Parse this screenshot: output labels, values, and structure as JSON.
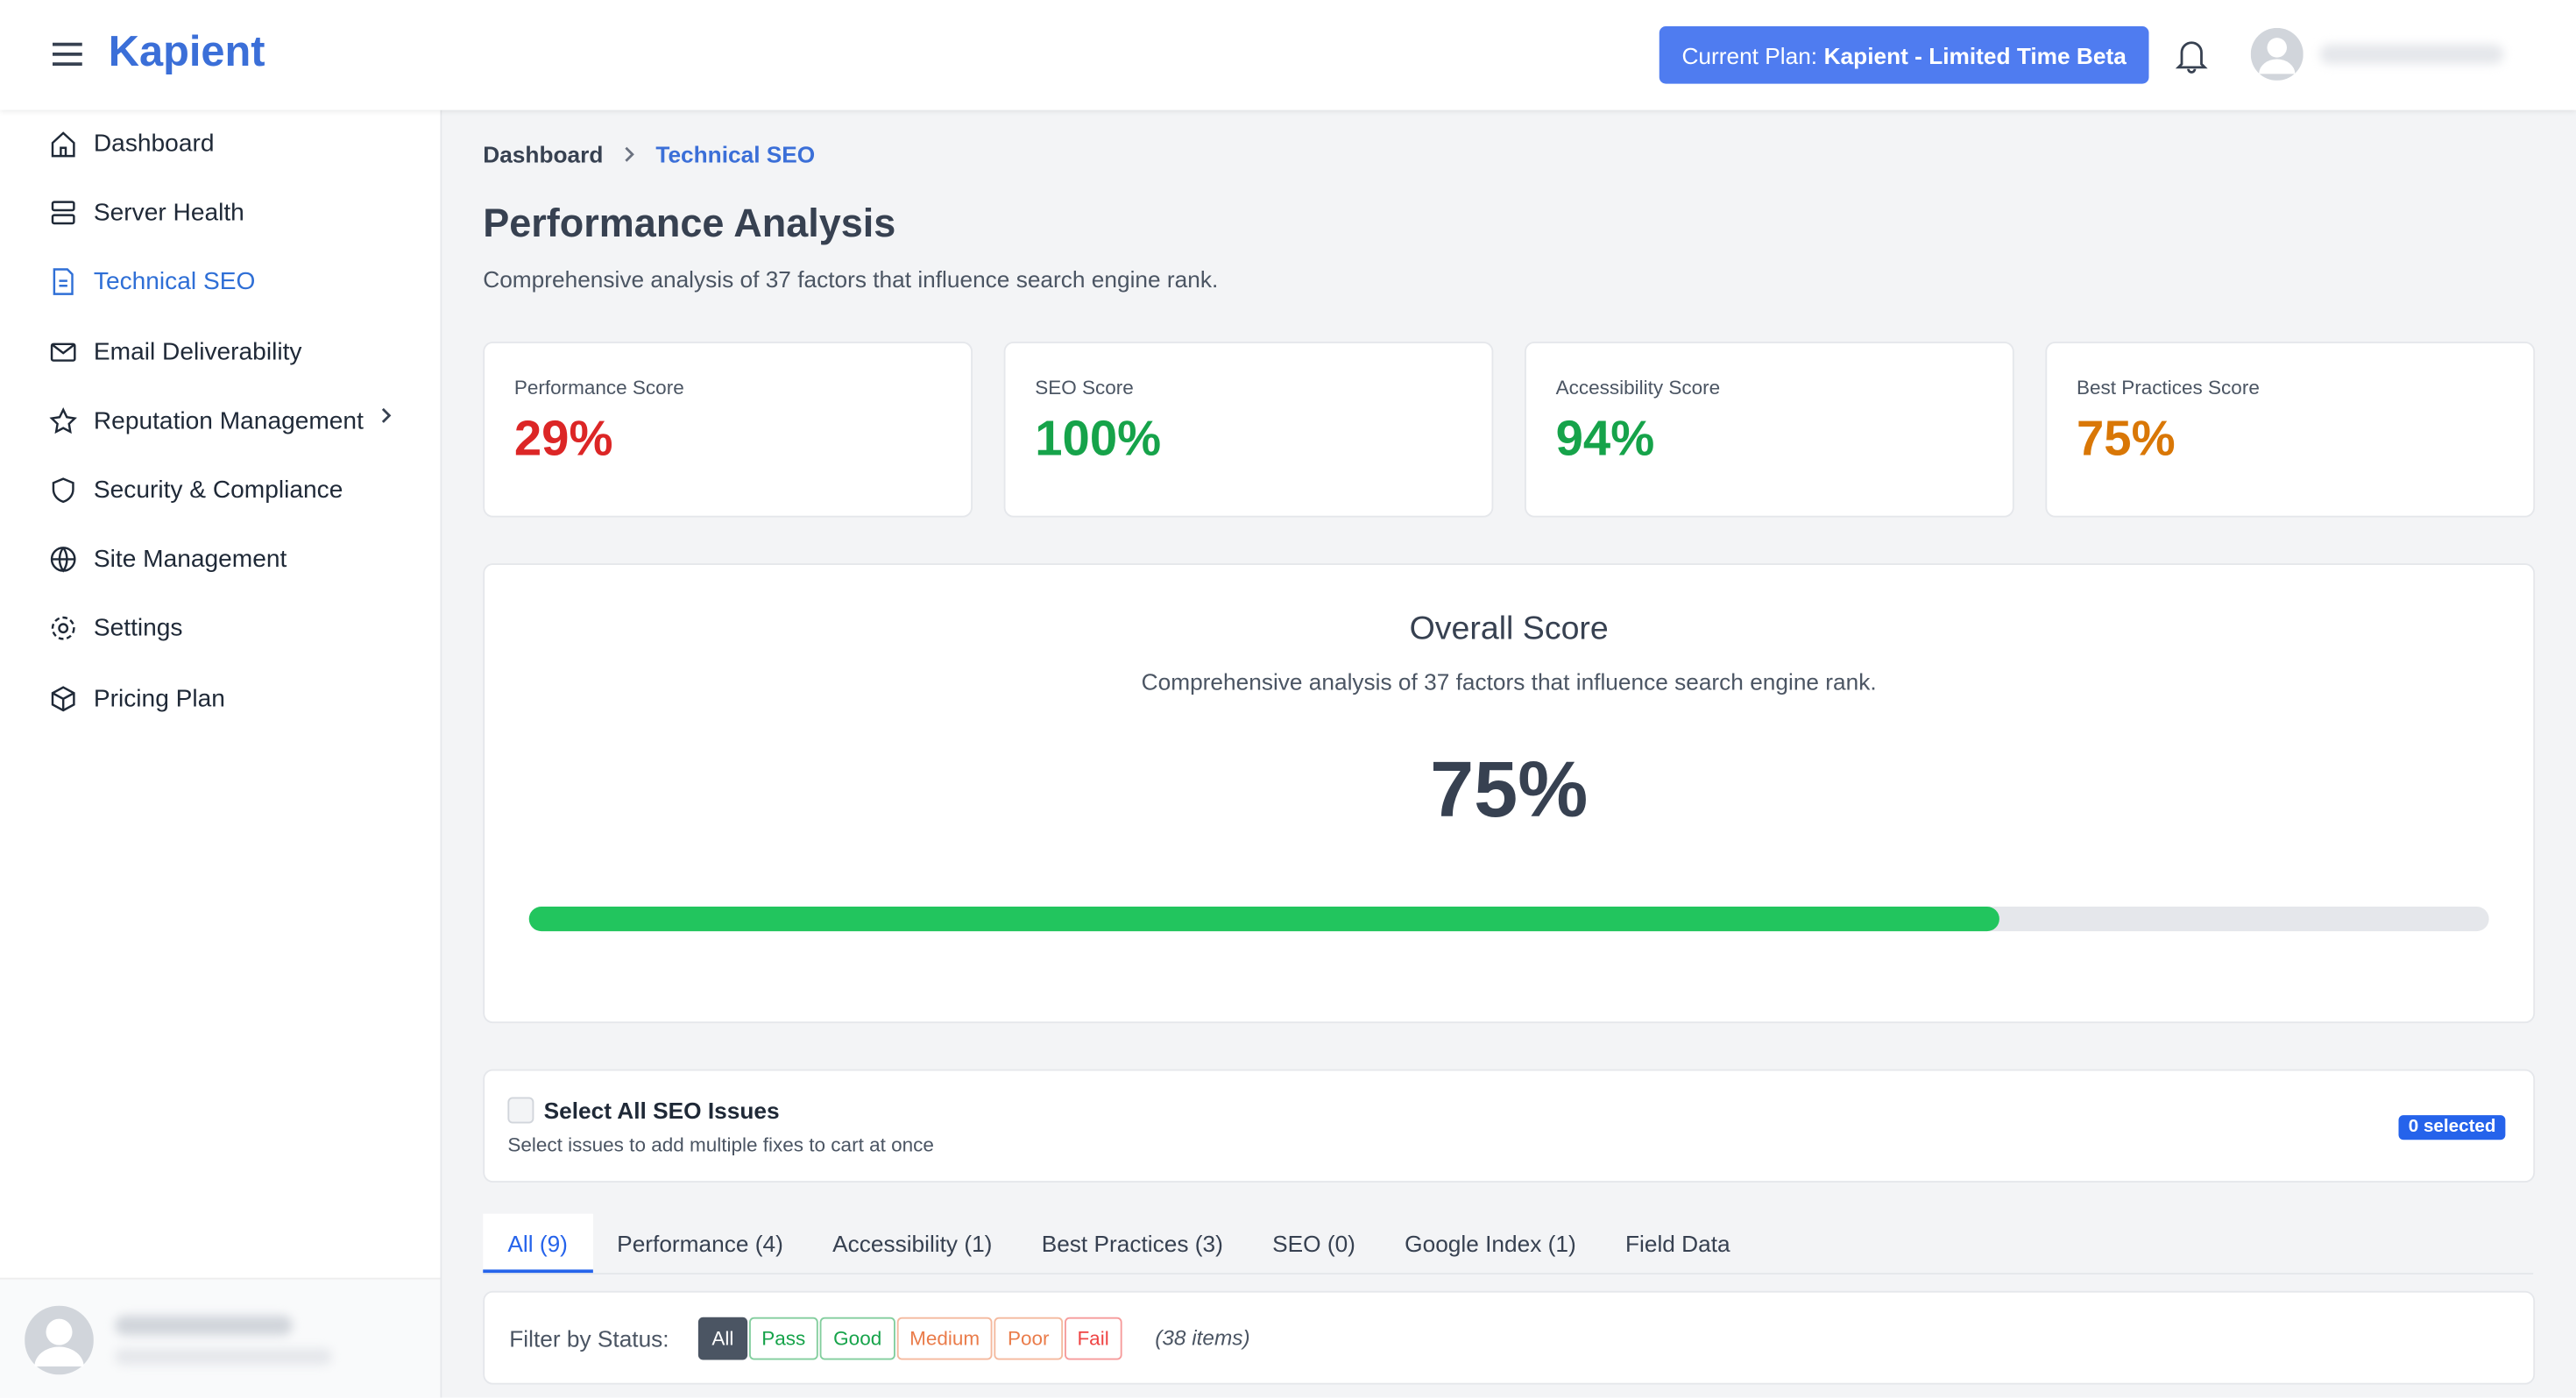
{
  "header": {
    "logo": "Kapient",
    "plan_label": "Current Plan:",
    "plan_name": "Kapient - Limited Time Beta"
  },
  "sidebar": {
    "items": [
      "Dashboard",
      "Server Health",
      "Technical SEO",
      "Email Deliverability",
      "Reputation Management",
      "Security & Compliance",
      "Site Management",
      "Settings",
      "Pricing Plan"
    ],
    "active": "Technical SEO"
  },
  "breadcrumb": [
    "Dashboard",
    "Technical SEO"
  ],
  "page": {
    "title": "Performance Analysis",
    "subtitle": "Comprehensive analysis of 37 factors that influence search engine rank."
  },
  "score_cards": [
    {
      "label": "Performance Score",
      "value": "29%",
      "color": "#dc2626"
    },
    {
      "label": "SEO Score",
      "value": "100%",
      "color": "#16a34a"
    },
    {
      "label": "Accessibility Score",
      "value": "94%",
      "color": "#16a34a"
    },
    {
      "label": "Best Practices Score",
      "value": "75%",
      "color": "#d97706"
    }
  ],
  "overall": {
    "title": "Overall Score",
    "subtitle": "Comprehensive analysis of 37 factors that influence search engine rank.",
    "score": {
      "value": 75,
      "label": "75%"
    },
    "scale_max": 100
  },
  "select_all": {
    "title": "Select All SEO Issues",
    "subtitle": "Select issues to add multiple fixes to cart at once",
    "badge": "0 selected"
  },
  "tabs": {
    "items": [
      "All (9)",
      "Performance (4)",
      "Accessibility (1)",
      "Best Practices (3)",
      "SEO (0)",
      "Google Index (1)",
      "Field Data"
    ],
    "active": 0
  },
  "filter": {
    "label": "Filter by Status:",
    "chips": [
      "All",
      "Pass",
      "Good",
      "Medium",
      "Poor",
      "Fail"
    ],
    "count": "(38 items)"
  }
}
